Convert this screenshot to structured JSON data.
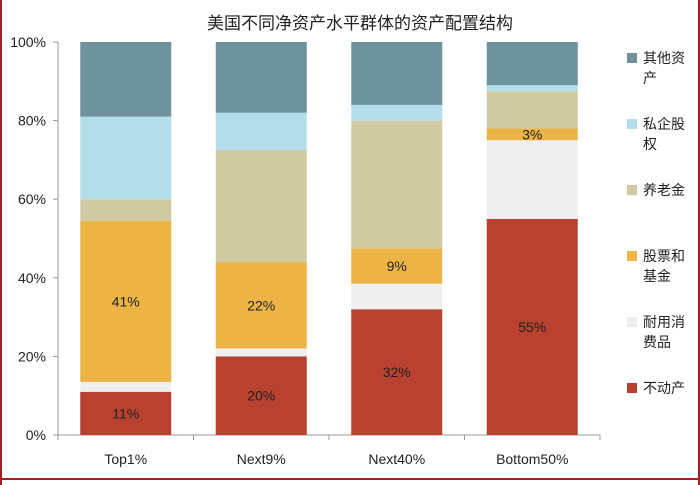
{
  "chart_data": {
    "type": "bar",
    "stacked": true,
    "title": "美国不同净资产水平群体的资产配置结构",
    "xlabel": "",
    "ylabel": "",
    "ylim": [
      0,
      100
    ],
    "yticks": [
      "0%",
      "20%",
      "40%",
      "60%",
      "80%",
      "100%"
    ],
    "categories": [
      "Top1%",
      "Next9%",
      "Next40%",
      "Bottom50%"
    ],
    "series": [
      {
        "name": "不动产",
        "color": "#b8412f",
        "values": [
          11,
          20,
          32,
          55
        ],
        "labels": [
          "11%",
          "20%",
          "32%",
          "55%"
        ]
      },
      {
        "name": "耐用消费品",
        "color": "#efefef",
        "values": [
          2.5,
          2,
          6.5,
          20
        ],
        "labels": [
          "",
          "",
          "",
          ""
        ]
      },
      {
        "name": "股票和基金",
        "color": "#ecb445",
        "values": [
          41,
          22,
          9,
          3
        ],
        "labels": [
          "41%",
          "22%",
          "9%",
          "3%"
        ]
      },
      {
        "name": "养老金",
        "color": "#cfcaa2",
        "values": [
          5.5,
          28.5,
          32.5,
          9.5
        ],
        "labels": [
          "",
          "",
          "",
          ""
        ]
      },
      {
        "name": "私企股权",
        "color": "#b3dde8",
        "values": [
          21,
          9.5,
          4,
          1.5
        ],
        "labels": [
          "",
          "",
          "",
          ""
        ]
      },
      {
        "name": "其他资产",
        "color": "#6e939d",
        "values": [
          19,
          18,
          16,
          11
        ],
        "labels": [
          "",
          "",
          "",
          ""
        ]
      }
    ],
    "legend": {
      "position": "right",
      "entries": [
        {
          "series": "其他资产",
          "lines": [
            "其他资",
            "产"
          ]
        },
        {
          "series": "私企股权",
          "lines": [
            "私企股",
            "权"
          ]
        },
        {
          "series": "养老金",
          "lines": [
            "养老金"
          ]
        },
        {
          "series": "股票和基金",
          "lines": [
            "股票和",
            "基金"
          ]
        },
        {
          "series": "耐用消费品",
          "lines": [
            "耐用消",
            "费品"
          ]
        },
        {
          "series": "不动产",
          "lines": [
            "不动产"
          ]
        }
      ]
    },
    "grid": false
  }
}
